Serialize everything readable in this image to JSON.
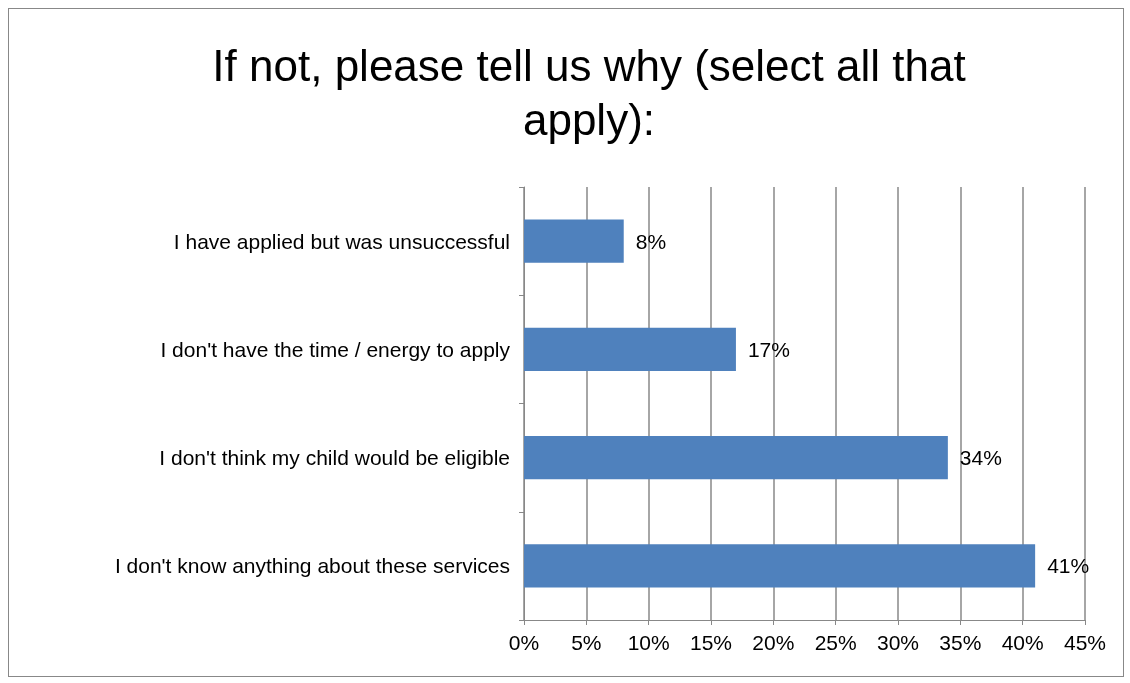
{
  "chart_data": {
    "type": "bar",
    "orientation": "horizontal",
    "title": "If not, please tell us why (select all that apply):",
    "categories": [
      "I have applied but was unsuccessful",
      "I don't have the time / energy to apply",
      "I don't think my child would be eligible",
      "I don't know anything about these services"
    ],
    "values": [
      8,
      17,
      34,
      41
    ],
    "color": "#4f81bd",
    "value_labels": [
      "8%",
      "17%",
      "34%",
      "41%"
    ],
    "xlim": [
      0,
      45
    ],
    "xticks": [
      {
        "value": 0,
        "label": "0%"
      },
      {
        "value": 5,
        "label": "5%"
      },
      {
        "value": 10,
        "label": "10%"
      },
      {
        "value": 15,
        "label": "15%"
      },
      {
        "value": 20,
        "label": "20%"
      },
      {
        "value": 25,
        "label": "25%"
      },
      {
        "value": 30,
        "label": "30%"
      },
      {
        "value": 35,
        "label": "35%"
      },
      {
        "value": 40,
        "label": "40%"
      },
      {
        "value": 45,
        "label": "45%"
      }
    ],
    "grid": "x"
  }
}
